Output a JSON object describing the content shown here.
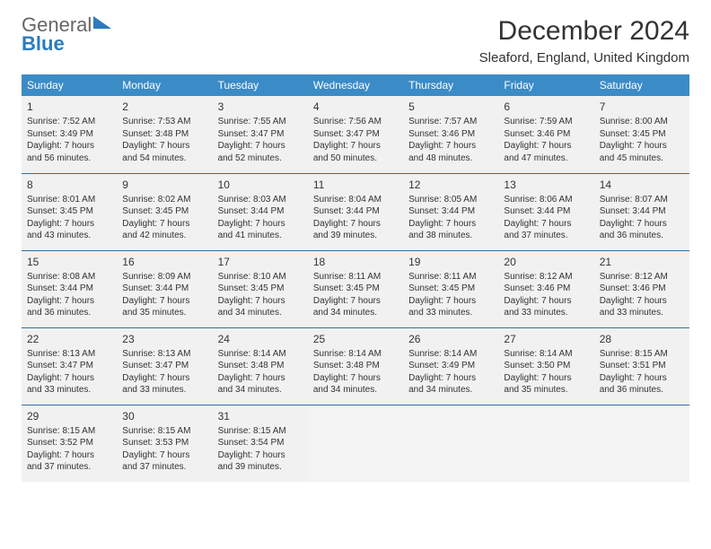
{
  "logo": {
    "word1": "General",
    "word2": "Blue"
  },
  "title": "December 2024",
  "location": "Sleaford, England, United Kingdom",
  "columns": [
    "Sunday",
    "Monday",
    "Tuesday",
    "Wednesday",
    "Thursday",
    "Friday",
    "Saturday"
  ],
  "header_bg": "#3b8bc7",
  "header_fg": "#ffffff",
  "cell_bg": "#f1f1f1",
  "rule_color": "#2f6fa2",
  "title_fontsize": 30,
  "location_fontsize": 15,
  "th_fontsize": 12,
  "cell_fontsize": 10,
  "daynum_fontsize": 12,
  "weeks": [
    [
      {
        "n": "1",
        "sr": "7:52 AM",
        "ss": "3:49 PM",
        "dl": "7 hours and 56 minutes."
      },
      {
        "n": "2",
        "sr": "7:53 AM",
        "ss": "3:48 PM",
        "dl": "7 hours and 54 minutes."
      },
      {
        "n": "3",
        "sr": "7:55 AM",
        "ss": "3:47 PM",
        "dl": "7 hours and 52 minutes."
      },
      {
        "n": "4",
        "sr": "7:56 AM",
        "ss": "3:47 PM",
        "dl": "7 hours and 50 minutes."
      },
      {
        "n": "5",
        "sr": "7:57 AM",
        "ss": "3:46 PM",
        "dl": "7 hours and 48 minutes."
      },
      {
        "n": "6",
        "sr": "7:59 AM",
        "ss": "3:46 PM",
        "dl": "7 hours and 47 minutes."
      },
      {
        "n": "7",
        "sr": "8:00 AM",
        "ss": "3:45 PM",
        "dl": "7 hours and 45 minutes."
      }
    ],
    [
      {
        "n": "8",
        "sr": "8:01 AM",
        "ss": "3:45 PM",
        "dl": "7 hours and 43 minutes."
      },
      {
        "n": "9",
        "sr": "8:02 AM",
        "ss": "3:45 PM",
        "dl": "7 hours and 42 minutes."
      },
      {
        "n": "10",
        "sr": "8:03 AM",
        "ss": "3:44 PM",
        "dl": "7 hours and 41 minutes."
      },
      {
        "n": "11",
        "sr": "8:04 AM",
        "ss": "3:44 PM",
        "dl": "7 hours and 39 minutes."
      },
      {
        "n": "12",
        "sr": "8:05 AM",
        "ss": "3:44 PM",
        "dl": "7 hours and 38 minutes."
      },
      {
        "n": "13",
        "sr": "8:06 AM",
        "ss": "3:44 PM",
        "dl": "7 hours and 37 minutes."
      },
      {
        "n": "14",
        "sr": "8:07 AM",
        "ss": "3:44 PM",
        "dl": "7 hours and 36 minutes."
      }
    ],
    [
      {
        "n": "15",
        "sr": "8:08 AM",
        "ss": "3:44 PM",
        "dl": "7 hours and 36 minutes."
      },
      {
        "n": "16",
        "sr": "8:09 AM",
        "ss": "3:44 PM",
        "dl": "7 hours and 35 minutes."
      },
      {
        "n": "17",
        "sr": "8:10 AM",
        "ss": "3:45 PM",
        "dl": "7 hours and 34 minutes."
      },
      {
        "n": "18",
        "sr": "8:11 AM",
        "ss": "3:45 PM",
        "dl": "7 hours and 34 minutes."
      },
      {
        "n": "19",
        "sr": "8:11 AM",
        "ss": "3:45 PM",
        "dl": "7 hours and 33 minutes."
      },
      {
        "n": "20",
        "sr": "8:12 AM",
        "ss": "3:46 PM",
        "dl": "7 hours and 33 minutes."
      },
      {
        "n": "21",
        "sr": "8:12 AM",
        "ss": "3:46 PM",
        "dl": "7 hours and 33 minutes."
      }
    ],
    [
      {
        "n": "22",
        "sr": "8:13 AM",
        "ss": "3:47 PM",
        "dl": "7 hours and 33 minutes."
      },
      {
        "n": "23",
        "sr": "8:13 AM",
        "ss": "3:47 PM",
        "dl": "7 hours and 33 minutes."
      },
      {
        "n": "24",
        "sr": "8:14 AM",
        "ss": "3:48 PM",
        "dl": "7 hours and 34 minutes."
      },
      {
        "n": "25",
        "sr": "8:14 AM",
        "ss": "3:48 PM",
        "dl": "7 hours and 34 minutes."
      },
      {
        "n": "26",
        "sr": "8:14 AM",
        "ss": "3:49 PM",
        "dl": "7 hours and 34 minutes."
      },
      {
        "n": "27",
        "sr": "8:14 AM",
        "ss": "3:50 PM",
        "dl": "7 hours and 35 minutes."
      },
      {
        "n": "28",
        "sr": "8:15 AM",
        "ss": "3:51 PM",
        "dl": "7 hours and 36 minutes."
      }
    ],
    [
      {
        "n": "29",
        "sr": "8:15 AM",
        "ss": "3:52 PM",
        "dl": "7 hours and 37 minutes."
      },
      {
        "n": "30",
        "sr": "8:15 AM",
        "ss": "3:53 PM",
        "dl": "7 hours and 37 minutes."
      },
      {
        "n": "31",
        "sr": "8:15 AM",
        "ss": "3:54 PM",
        "dl": "7 hours and 39 minutes."
      },
      null,
      null,
      null,
      null
    ]
  ],
  "labels": {
    "sunrise": "Sunrise: ",
    "sunset": "Sunset: ",
    "daylight": "Daylight: "
  }
}
